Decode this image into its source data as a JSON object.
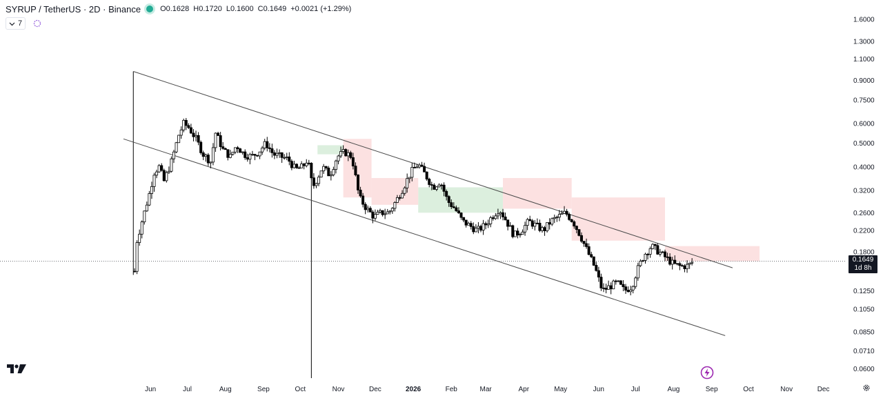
{
  "header": {
    "symbol": "SYRUP / TetherUS · 2D · Binance",
    "open": "O0.1628",
    "high": "H0.1720",
    "low": "L0.1600",
    "close": "C0.1649",
    "change": "+0.0021 (+1.29%)"
  },
  "indicators_button": {
    "label": "7"
  },
  "last_price": {
    "value": "0.1649",
    "countdown": "1d 8h"
  },
  "colors": {
    "up": "#ffffff",
    "down": "#000000",
    "wick": "#000000",
    "cloud_bull": "#d6ecd8",
    "cloud_bear": "#fbdcdc",
    "channel": "#4a4a4a",
    "tag": "#131722"
  },
  "chart_data": {
    "type": "candlestick",
    "timeframe": "2D",
    "y_scale": "log",
    "ylim": [
      0.055,
      1.75
    ],
    "xlim": [
      "2025-05-01",
      "2026-12-31"
    ],
    "y_ticks": [
      "1.6000",
      "1.3000",
      "1.1000",
      "0.9000",
      "0.7500",
      "0.6000",
      "0.5000",
      "0.4000",
      "0.3200",
      "0.2600",
      "0.2200",
      "0.1800",
      "0.1250",
      "0.1050",
      "0.0850",
      "0.0710",
      "0.0600"
    ],
    "x_ticks": [
      {
        "label": "Jun",
        "date": "2025-06-01",
        "bold": false
      },
      {
        "label": "Jul",
        "date": "2025-07-01",
        "bold": false
      },
      {
        "label": "Aug",
        "date": "2025-08-01",
        "bold": false
      },
      {
        "label": "Sep",
        "date": "2025-09-01",
        "bold": false
      },
      {
        "label": "Oct",
        "date": "2025-10-01",
        "bold": false
      },
      {
        "label": "Nov",
        "date": "2025-11-01",
        "bold": false
      },
      {
        "label": "Dec",
        "date": "2025-12-01",
        "bold": false
      },
      {
        "label": "2026",
        "date": "2026-01-01",
        "bold": true
      },
      {
        "label": "Feb",
        "date": "2026-02-01",
        "bold": false
      },
      {
        "label": "Mar",
        "date": "2026-03-01",
        "bold": false
      },
      {
        "label": "Apr",
        "date": "2026-04-01",
        "bold": false
      },
      {
        "label": "May",
        "date": "2026-05-01",
        "bold": false
      },
      {
        "label": "Jun",
        "date": "2026-06-01",
        "bold": false
      },
      {
        "label": "Jul",
        "date": "2026-07-01",
        "bold": false
      },
      {
        "label": "Aug",
        "date": "2026-08-01",
        "bold": false
      },
      {
        "label": "Sep",
        "date": "2026-09-01",
        "bold": false
      },
      {
        "label": "Oct",
        "date": "2026-10-01",
        "bold": false
      },
      {
        "label": "Nov",
        "date": "2026-11-01",
        "bold": false
      },
      {
        "label": "Dec",
        "date": "2026-12-01",
        "bold": false
      }
    ],
    "price_path": [
      [
        "2025-05-19",
        0.15
      ],
      [
        "2025-05-21",
        0.2
      ],
      [
        "2025-05-25",
        0.24
      ],
      [
        "2025-05-31",
        0.31
      ],
      [
        "2025-06-04",
        0.38
      ],
      [
        "2025-06-08",
        0.4
      ],
      [
        "2025-06-12",
        0.35
      ],
      [
        "2025-06-18",
        0.42
      ],
      [
        "2025-06-24",
        0.54
      ],
      [
        "2025-06-28",
        0.6
      ],
      [
        "2025-07-02",
        0.58
      ],
      [
        "2025-07-08",
        0.52
      ],
      [
        "2025-07-14",
        0.45
      ],
      [
        "2025-07-20",
        0.42
      ],
      [
        "2025-07-24",
        0.55
      ],
      [
        "2025-07-30",
        0.47
      ],
      [
        "2025-08-05",
        0.44
      ],
      [
        "2025-08-10",
        0.49
      ],
      [
        "2025-08-16",
        0.45
      ],
      [
        "2025-08-22",
        0.44
      ],
      [
        "2025-08-28",
        0.46
      ],
      [
        "2025-09-03",
        0.5
      ],
      [
        "2025-09-09",
        0.45
      ],
      [
        "2025-09-15",
        0.44
      ],
      [
        "2025-09-21",
        0.43
      ],
      [
        "2025-09-27",
        0.39
      ],
      [
        "2025-10-03",
        0.4
      ],
      [
        "2025-10-07",
        0.43
      ],
      [
        "2025-10-11",
        0.33
      ],
      [
        "2025-10-15",
        0.36
      ],
      [
        "2025-10-19",
        0.4
      ],
      [
        "2025-10-25",
        0.37
      ],
      [
        "2025-10-31",
        0.44
      ],
      [
        "2025-11-06",
        0.46
      ],
      [
        "2025-11-12",
        0.44
      ],
      [
        "2025-11-18",
        0.3
      ],
      [
        "2025-11-24",
        0.27
      ],
      [
        "2025-11-30",
        0.25
      ],
      [
        "2025-12-06",
        0.26
      ],
      [
        "2025-12-12",
        0.26
      ],
      [
        "2025-12-18",
        0.29
      ],
      [
        "2025-12-24",
        0.33
      ],
      [
        "2025-12-30",
        0.38
      ],
      [
        "2026-01-05",
        0.41
      ],
      [
        "2026-01-11",
        0.37
      ],
      [
        "2026-01-17",
        0.33
      ],
      [
        "2026-01-23",
        0.35
      ],
      [
        "2026-01-29",
        0.29
      ],
      [
        "2026-02-04",
        0.27
      ],
      [
        "2026-02-10",
        0.24
      ],
      [
        "2026-02-16",
        0.23
      ],
      [
        "2026-02-22",
        0.22
      ],
      [
        "2026-02-28",
        0.23
      ],
      [
        "2026-03-06",
        0.25
      ],
      [
        "2026-03-12",
        0.27
      ],
      [
        "2026-03-18",
        0.24
      ],
      [
        "2026-03-24",
        0.21
      ],
      [
        "2026-03-30",
        0.22
      ],
      [
        "2026-04-05",
        0.24
      ],
      [
        "2026-04-11",
        0.23
      ],
      [
        "2026-04-17",
        0.22
      ],
      [
        "2026-04-23",
        0.24
      ],
      [
        "2026-04-29",
        0.25
      ],
      [
        "2026-05-05",
        0.26
      ],
      [
        "2026-05-11",
        0.24
      ],
      [
        "2026-05-17",
        0.21
      ],
      [
        "2026-05-23",
        0.18
      ],
      [
        "2026-05-29",
        0.155
      ],
      [
        "2026-06-04",
        0.125
      ],
      [
        "2026-06-10",
        0.13
      ],
      [
        "2026-06-16",
        0.135
      ],
      [
        "2026-06-22",
        0.125
      ],
      [
        "2026-06-28",
        0.13
      ],
      [
        "2026-07-02",
        0.15
      ],
      [
        "2026-07-08",
        0.175
      ],
      [
        "2026-07-14",
        0.19
      ],
      [
        "2026-07-20",
        0.18
      ],
      [
        "2026-07-26",
        0.17
      ],
      [
        "2026-08-01",
        0.16
      ],
      [
        "2026-08-07",
        0.157
      ],
      [
        "2026-08-13",
        0.158
      ],
      [
        "2026-08-17",
        0.1649
      ]
    ],
    "channel": {
      "upper": [
        [
          "2025-05-18",
          0.98
        ],
        [
          "2026-09-18",
          0.155
        ]
      ],
      "lower": [
        [
          "2025-05-10",
          0.52
        ],
        [
          "2026-09-12",
          0.082
        ]
      ]
    },
    "vertical_spikes": [
      {
        "date": "2025-05-18",
        "high": 0.98,
        "low": 0.145
      },
      {
        "date": "2025-10-10",
        "high": 0.36,
        "low": 0.055
      }
    ],
    "cloud": {
      "bull": [
        {
          "from": "2025-10-15",
          "to": "2025-11-05",
          "top": 0.49,
          "bottom": 0.45
        },
        {
          "from": "2026-01-05",
          "to": "2026-03-15",
          "top": 0.33,
          "bottom": 0.26
        }
      ],
      "bear": [
        {
          "from": "2025-11-05",
          "to": "2025-11-28",
          "top": 0.52,
          "bottom": 0.3
        },
        {
          "from": "2025-11-28",
          "to": "2026-01-05",
          "top": 0.36,
          "bottom": 0.28
        },
        {
          "from": "2026-03-15",
          "to": "2026-05-10",
          "top": 0.36,
          "bottom": 0.27
        },
        {
          "from": "2026-05-10",
          "to": "2026-07-25",
          "top": 0.3,
          "bottom": 0.2
        },
        {
          "from": "2026-07-25",
          "to": "2026-10-10",
          "top": 0.19,
          "bottom": 0.165
        }
      ]
    },
    "last_price": 0.1649
  }
}
